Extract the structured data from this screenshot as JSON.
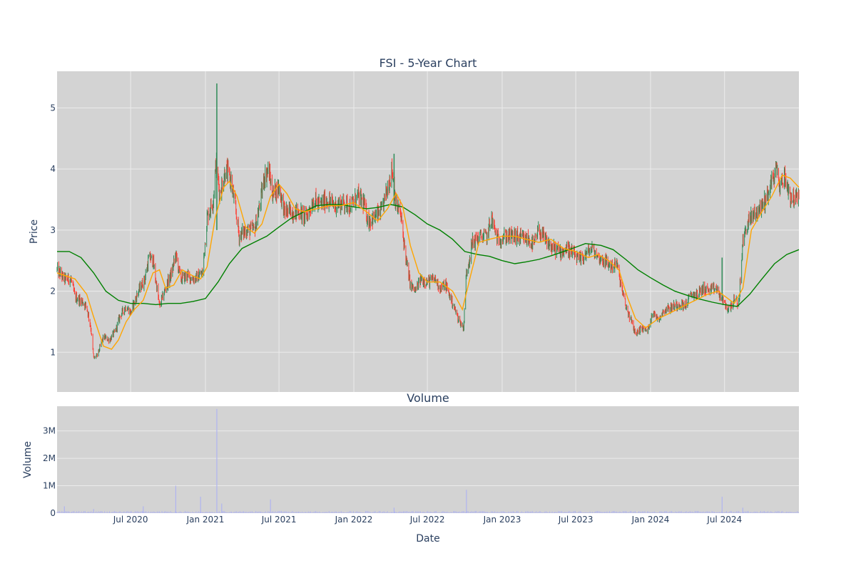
{
  "colors": {
    "plot_bg": "#d3d3d3",
    "grid": "#ebebeb",
    "up": "#2e8b57",
    "down": "#ff3b30",
    "ma_short": "#ffa500",
    "ma_long": "#008000",
    "volume": "#b0b4f0",
    "text": "#2a3f5f"
  },
  "chart_data": [
    {
      "type": "candlestick",
      "title": "FSI - 5-Year Chart",
      "ylabel": "Price",
      "ylim": [
        0.35,
        5.6
      ],
      "xlim": [
        "2020-01-02",
        "2024-12-31"
      ],
      "y_ticks": [
        1,
        2,
        3,
        4,
        5
      ],
      "y_tick_labels": [
        "1",
        "2",
        "3",
        "4",
        "5"
      ],
      "grid": true,
      "x_grid_dates": [
        "2020-07-01",
        "2021-01-01",
        "2021-07-01",
        "2022-01-01",
        "2022-07-01",
        "2023-01-01",
        "2023-07-01",
        "2024-01-01",
        "2024-07-01"
      ],
      "close_path": [
        [
          "2020-01-02",
          2.35
        ],
        [
          "2020-01-20",
          2.2
        ],
        [
          "2020-02-05",
          2.2
        ],
        [
          "2020-02-15",
          1.9
        ],
        [
          "2020-03-01",
          1.85
        ],
        [
          "2020-03-15",
          1.75
        ],
        [
          "2020-03-25",
          1.4
        ],
        [
          "2020-04-01",
          0.9
        ],
        [
          "2020-04-10",
          0.95
        ],
        [
          "2020-04-25",
          1.25
        ],
        [
          "2020-05-10",
          1.2
        ],
        [
          "2020-05-25",
          1.35
        ],
        [
          "2020-06-05",
          1.6
        ],
        [
          "2020-06-20",
          1.75
        ],
        [
          "2020-07-01",
          1.65
        ],
        [
          "2020-07-20",
          2.0
        ],
        [
          "2020-08-05",
          2.2
        ],
        [
          "2020-08-15",
          2.55
        ],
        [
          "2020-08-25",
          2.5
        ],
        [
          "2020-09-10",
          1.75
        ],
        [
          "2020-09-25",
          2.05
        ],
        [
          "2020-10-10",
          2.3
        ],
        [
          "2020-10-20",
          2.6
        ],
        [
          "2020-11-01",
          2.2
        ],
        [
          "2020-11-15",
          2.25
        ],
        [
          "2020-12-05",
          2.2
        ],
        [
          "2020-12-25",
          2.3
        ],
        [
          "2021-01-05",
          3.2
        ],
        [
          "2021-01-20",
          3.5
        ],
        [
          "2021-01-27",
          4.1
        ],
        [
          "2021-02-05",
          3.6
        ],
        [
          "2021-02-20",
          4.0
        ],
        [
          "2021-03-05",
          3.8
        ],
        [
          "2021-03-15",
          3.4
        ],
        [
          "2021-03-25",
          2.9
        ],
        [
          "2021-04-10",
          3.0
        ],
        [
          "2021-05-01",
          3.0
        ],
        [
          "2021-05-15",
          3.4
        ],
        [
          "2021-05-25",
          3.85
        ],
        [
          "2021-06-05",
          4.0
        ],
        [
          "2021-06-15",
          3.6
        ],
        [
          "2021-07-01",
          3.7
        ],
        [
          "2021-07-15",
          3.3
        ],
        [
          "2021-08-01",
          3.3
        ],
        [
          "2021-08-20",
          3.3
        ],
        [
          "2021-09-05",
          3.2
        ],
        [
          "2021-09-25",
          3.5
        ],
        [
          "2021-10-10",
          3.4
        ],
        [
          "2021-10-25",
          3.5
        ],
        [
          "2021-11-15",
          3.4
        ],
        [
          "2021-12-05",
          3.45
        ],
        [
          "2021-12-25",
          3.4
        ],
        [
          "2022-01-10",
          3.55
        ],
        [
          "2022-01-25",
          3.45
        ],
        [
          "2022-02-05",
          3.15
        ],
        [
          "2022-02-20",
          3.2
        ],
        [
          "2022-03-10",
          3.3
        ],
        [
          "2022-03-25",
          3.7
        ],
        [
          "2022-04-05",
          4.0
        ],
        [
          "2022-04-15",
          3.4
        ],
        [
          "2022-04-25",
          3.3
        ],
        [
          "2022-05-10",
          2.5
        ],
        [
          "2022-05-20",
          2.1
        ],
        [
          "2022-06-01",
          2.0
        ],
        [
          "2022-06-15",
          2.2
        ],
        [
          "2022-07-01",
          2.15
        ],
        [
          "2022-07-20",
          2.2
        ],
        [
          "2022-08-01",
          2.05
        ],
        [
          "2022-08-15",
          2.1
        ],
        [
          "2022-09-01",
          1.8
        ],
        [
          "2022-09-15",
          1.55
        ],
        [
          "2022-09-28",
          1.4
        ],
        [
          "2022-10-05",
          2.3
        ],
        [
          "2022-10-20",
          2.8
        ],
        [
          "2022-11-10",
          2.9
        ],
        [
          "2022-11-25",
          2.9
        ],
        [
          "2022-12-05",
          3.2
        ],
        [
          "2022-12-20",
          2.85
        ],
        [
          "2023-01-10",
          2.9
        ],
        [
          "2023-02-01",
          2.9
        ],
        [
          "2023-02-20",
          2.85
        ],
        [
          "2023-03-05",
          2.85
        ],
        [
          "2023-03-20",
          2.75
        ],
        [
          "2023-04-01",
          3.0
        ],
        [
          "2023-04-20",
          2.8
        ],
        [
          "2023-05-05",
          2.7
        ],
        [
          "2023-05-25",
          2.65
        ],
        [
          "2023-06-10",
          2.7
        ],
        [
          "2023-06-25",
          2.6
        ],
        [
          "2023-07-10",
          2.5
        ],
        [
          "2023-07-25",
          2.6
        ],
        [
          "2023-08-10",
          2.7
        ],
        [
          "2023-08-25",
          2.55
        ],
        [
          "2023-09-10",
          2.5
        ],
        [
          "2023-09-25",
          2.4
        ],
        [
          "2023-10-10",
          2.45
        ],
        [
          "2023-10-20",
          2.1
        ],
        [
          "2023-11-01",
          1.75
        ],
        [
          "2023-11-15",
          1.5
        ],
        [
          "2023-11-25",
          1.3
        ],
        [
          "2023-12-10",
          1.4
        ],
        [
          "2023-12-25",
          1.35
        ],
        [
          "2024-01-05",
          1.65
        ],
        [
          "2024-01-20",
          1.55
        ],
        [
          "2024-02-05",
          1.7
        ],
        [
          "2024-02-25",
          1.75
        ],
        [
          "2024-03-15",
          1.8
        ],
        [
          "2024-03-25",
          1.75
        ],
        [
          "2024-04-10",
          1.95
        ],
        [
          "2024-04-25",
          1.95
        ],
        [
          "2024-05-10",
          2.05
        ],
        [
          "2024-05-25",
          2.0
        ],
        [
          "2024-06-10",
          2.05
        ],
        [
          "2024-06-25",
          1.85
        ],
        [
          "2024-07-10",
          1.7
        ],
        [
          "2024-07-25",
          1.85
        ],
        [
          "2024-08-05",
          1.8
        ],
        [
          "2024-08-15",
          2.8
        ],
        [
          "2024-08-25",
          3.1
        ],
        [
          "2024-09-10",
          3.25
        ],
        [
          "2024-09-25",
          3.35
        ],
        [
          "2024-10-10",
          3.5
        ],
        [
          "2024-10-25",
          3.8
        ],
        [
          "2024-11-05",
          4.0
        ],
        [
          "2024-11-15",
          3.7
        ],
        [
          "2024-11-25",
          3.9
        ],
        [
          "2024-12-10",
          3.55
        ],
        [
          "2024-12-31",
          3.5
        ]
      ],
      "spikes": [
        {
          "date": "2021-01-29",
          "high": 5.4,
          "low": 3.0
        },
        {
          "date": "2024-06-25",
          "high": 2.55,
          "low": 1.85
        },
        {
          "date": "2022-04-10",
          "high": 4.25,
          "low": 3.4
        }
      ],
      "ma_short": [
        [
          "2020-01-02",
          2.3
        ],
        [
          "2020-02-15",
          2.2
        ],
        [
          "2020-03-15",
          1.95
        ],
        [
          "2020-03-31",
          1.6
        ],
        [
          "2020-04-25",
          1.1
        ],
        [
          "2020-05-15",
          1.05
        ],
        [
          "2020-06-01",
          1.2
        ],
        [
          "2020-06-20",
          1.5
        ],
        [
          "2020-07-10",
          1.7
        ],
        [
          "2020-08-01",
          1.85
        ],
        [
          "2020-08-25",
          2.3
        ],
        [
          "2020-09-10",
          2.35
        ],
        [
          "2020-09-25",
          2.05
        ],
        [
          "2020-10-15",
          2.1
        ],
        [
          "2020-11-05",
          2.35
        ],
        [
          "2020-12-01",
          2.25
        ],
        [
          "2020-12-20",
          2.2
        ],
        [
          "2021-01-05",
          2.4
        ],
        [
          "2021-01-25",
          3.2
        ],
        [
          "2021-02-15",
          3.7
        ],
        [
          "2021-03-01",
          3.8
        ],
        [
          "2021-03-20",
          3.55
        ],
        [
          "2021-04-10",
          3.05
        ],
        [
          "2021-05-01",
          2.95
        ],
        [
          "2021-05-20",
          3.1
        ],
        [
          "2021-06-10",
          3.55
        ],
        [
          "2021-07-01",
          3.75
        ],
        [
          "2021-07-20",
          3.6
        ],
        [
          "2021-08-10",
          3.35
        ],
        [
          "2021-09-01",
          3.3
        ],
        [
          "2021-10-01",
          3.35
        ],
        [
          "2021-11-01",
          3.4
        ],
        [
          "2021-12-01",
          3.4
        ],
        [
          "2022-01-01",
          3.45
        ],
        [
          "2022-02-01",
          3.3
        ],
        [
          "2022-03-01",
          3.15
        ],
        [
          "2022-03-25",
          3.35
        ],
        [
          "2022-04-15",
          3.6
        ],
        [
          "2022-05-01",
          3.4
        ],
        [
          "2022-05-20",
          2.75
        ],
        [
          "2022-06-10",
          2.3
        ],
        [
          "2022-07-01",
          2.15
        ],
        [
          "2022-08-01",
          2.15
        ],
        [
          "2022-09-01",
          2.0
        ],
        [
          "2022-09-25",
          1.7
        ],
        [
          "2022-10-15",
          2.25
        ],
        [
          "2022-11-05",
          2.8
        ],
        [
          "2022-12-01",
          2.85
        ],
        [
          "2023-01-01",
          2.9
        ],
        [
          "2023-02-01",
          2.9
        ],
        [
          "2023-03-01",
          2.85
        ],
        [
          "2023-04-01",
          2.8
        ],
        [
          "2023-05-01",
          2.85
        ],
        [
          "2023-06-01",
          2.7
        ],
        [
          "2023-07-01",
          2.65
        ],
        [
          "2023-08-01",
          2.55
        ],
        [
          "2023-08-25",
          2.6
        ],
        [
          "2023-09-20",
          2.5
        ],
        [
          "2023-10-15",
          2.35
        ],
        [
          "2023-11-05",
          1.9
        ],
        [
          "2023-11-25",
          1.55
        ],
        [
          "2023-12-20",
          1.4
        ],
        [
          "2024-01-20",
          1.55
        ],
        [
          "2024-02-20",
          1.65
        ],
        [
          "2024-03-20",
          1.75
        ],
        [
          "2024-04-20",
          1.85
        ],
        [
          "2024-05-20",
          1.95
        ],
        [
          "2024-06-15",
          2.0
        ],
        [
          "2024-07-05",
          1.9
        ],
        [
          "2024-07-25",
          1.8
        ],
        [
          "2024-08-15",
          2.05
        ],
        [
          "2024-09-05",
          3.0
        ],
        [
          "2024-10-01",
          3.3
        ],
        [
          "2024-10-25",
          3.55
        ],
        [
          "2024-11-20",
          3.9
        ],
        [
          "2024-12-10",
          3.85
        ],
        [
          "2024-12-31",
          3.7
        ]
      ],
      "ma_long": [
        [
          "2020-01-02",
          2.65
        ],
        [
          "2020-02-01",
          2.65
        ],
        [
          "2020-03-01",
          2.55
        ],
        [
          "2020-04-01",
          2.3
        ],
        [
          "2020-05-01",
          2.0
        ],
        [
          "2020-06-01",
          1.85
        ],
        [
          "2020-07-01",
          1.8
        ],
        [
          "2020-08-01",
          1.8
        ],
        [
          "2020-09-01",
          1.78
        ],
        [
          "2020-10-01",
          1.8
        ],
        [
          "2020-11-01",
          1.8
        ],
        [
          "2020-12-01",
          1.83
        ],
        [
          "2021-01-01",
          1.88
        ],
        [
          "2021-02-01",
          2.15
        ],
        [
          "2021-03-01",
          2.45
        ],
        [
          "2021-04-01",
          2.7
        ],
        [
          "2021-05-01",
          2.8
        ],
        [
          "2021-06-01",
          2.9
        ],
        [
          "2021-07-01",
          3.05
        ],
        [
          "2021-08-01",
          3.2
        ],
        [
          "2021-09-01",
          3.3
        ],
        [
          "2021-10-01",
          3.4
        ],
        [
          "2021-11-01",
          3.42
        ],
        [
          "2021-12-01",
          3.42
        ],
        [
          "2022-01-01",
          3.38
        ],
        [
          "2022-02-01",
          3.35
        ],
        [
          "2022-03-01",
          3.37
        ],
        [
          "2022-04-01",
          3.42
        ],
        [
          "2022-05-01",
          3.38
        ],
        [
          "2022-06-01",
          3.25
        ],
        [
          "2022-07-01",
          3.1
        ],
        [
          "2022-08-01",
          3.0
        ],
        [
          "2022-09-01",
          2.85
        ],
        [
          "2022-10-01",
          2.65
        ],
        [
          "2022-11-01",
          2.6
        ],
        [
          "2022-12-01",
          2.57
        ],
        [
          "2023-01-01",
          2.5
        ],
        [
          "2023-02-01",
          2.45
        ],
        [
          "2023-03-01",
          2.48
        ],
        [
          "2023-04-01",
          2.52
        ],
        [
          "2023-05-01",
          2.58
        ],
        [
          "2023-06-01",
          2.65
        ],
        [
          "2023-07-01",
          2.72
        ],
        [
          "2023-07-25",
          2.78
        ],
        [
          "2023-09-01",
          2.75
        ],
        [
          "2023-10-01",
          2.68
        ],
        [
          "2023-11-01",
          2.52
        ],
        [
          "2023-12-01",
          2.35
        ],
        [
          "2024-01-01",
          2.22
        ],
        [
          "2024-02-01",
          2.1
        ],
        [
          "2024-03-01",
          2.0
        ],
        [
          "2024-04-01",
          1.93
        ],
        [
          "2024-05-01",
          1.87
        ],
        [
          "2024-06-01",
          1.82
        ],
        [
          "2024-07-01",
          1.78
        ],
        [
          "2024-08-01",
          1.75
        ],
        [
          "2024-09-01",
          1.95
        ],
        [
          "2024-10-01",
          2.2
        ],
        [
          "2024-11-01",
          2.45
        ],
        [
          "2024-12-01",
          2.6
        ],
        [
          "2024-12-31",
          2.68
        ]
      ]
    },
    {
      "type": "bar",
      "title": "Volume",
      "ylabel": "Volume",
      "xlabel": "Date",
      "ylim": [
        0,
        3900000
      ],
      "y_ticks": [
        0,
        1000000,
        2000000,
        3000000
      ],
      "y_tick_labels": [
        "0",
        "1M",
        "2M",
        "3M"
      ],
      "x_ticks": [
        "2020-07-01",
        "2021-01-01",
        "2021-07-01",
        "2022-01-01",
        "2022-07-01",
        "2023-01-01",
        "2023-07-01",
        "2024-01-01",
        "2024-07-01"
      ],
      "x_tick_labels": [
        "Jul 2020",
        "Jan 2021",
        "Jul 2021",
        "Jan 2022",
        "Jul 2022",
        "Jan 2023",
        "Jul 2023",
        "Jan 2024",
        "Jul 2024"
      ],
      "spikes": [
        {
          "date": "2020-01-20",
          "value": 250000
        },
        {
          "date": "2020-04-01",
          "value": 150000
        },
        {
          "date": "2020-08-01",
          "value": 250000
        },
        {
          "date": "2020-10-20",
          "value": 1000000
        },
        {
          "date": "2020-12-20",
          "value": 600000
        },
        {
          "date": "2021-01-29",
          "value": 3800000
        },
        {
          "date": "2021-02-10",
          "value": 350000
        },
        {
          "date": "2021-06-10",
          "value": 500000
        },
        {
          "date": "2022-04-10",
          "value": 200000
        },
        {
          "date": "2022-10-05",
          "value": 850000
        },
        {
          "date": "2024-06-25",
          "value": 600000
        },
        {
          "date": "2024-08-15",
          "value": 200000
        }
      ]
    }
  ]
}
